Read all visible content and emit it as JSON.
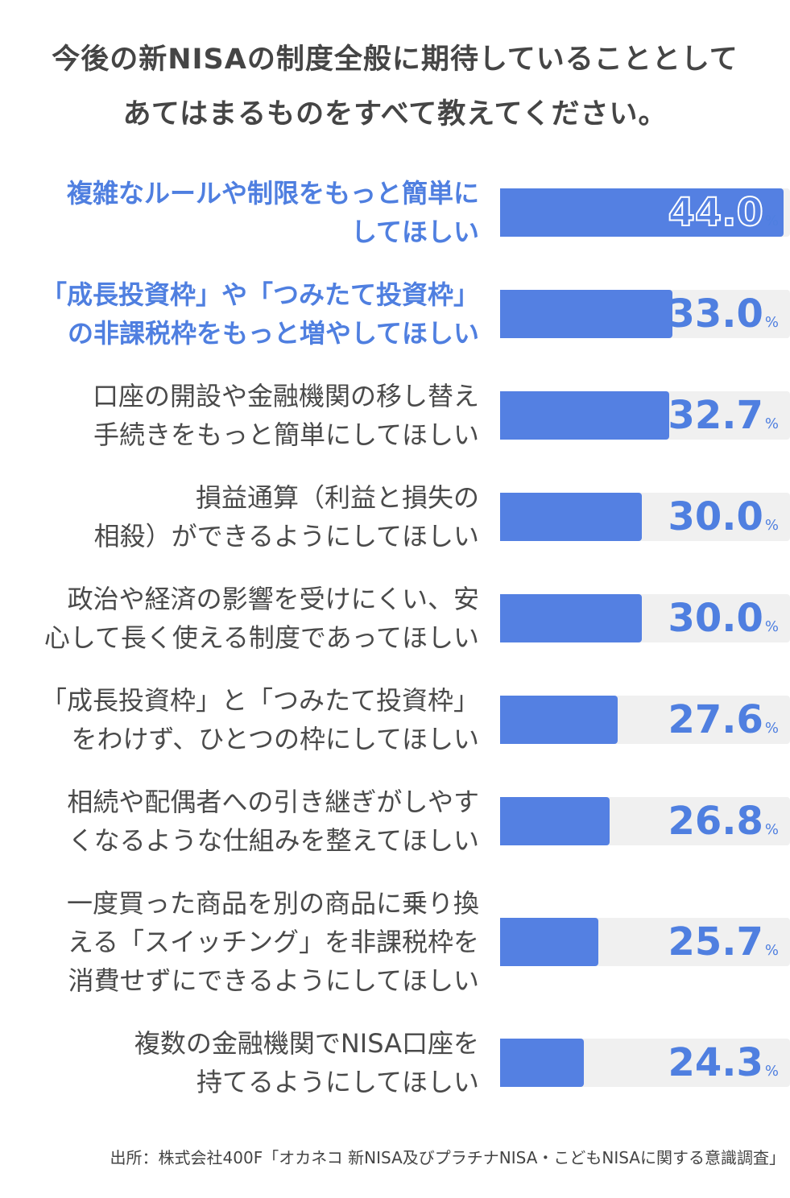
{
  "chart_data": {
    "type": "bar",
    "orientation": "horizontal",
    "title": "今後の新NISAの制度全般に期待していることとして\nあてはまるものをすべて教えてください。",
    "title_lines": [
      "今後の新NISAの制度全般に期待していることとして",
      "あてはまるものをすべて教えてください。"
    ],
    "categories": [
      [
        "複雑なルールや制限をもっと簡単に",
        "してほしい"
      ],
      [
        "「成長投資枠」や「つみたて投資枠」",
        "の非課税枠をもっと増やしてほしい"
      ],
      [
        "口座の開設や金融機関の移し替え",
        "手続きをもっと簡単にしてほしい"
      ],
      [
        "損益通算（利益と損失の",
        "相殺）ができるようにしてほしい"
      ],
      [
        "政治や経済の影響を受けにくい、安",
        "心して長く使える制度であってほしい"
      ],
      [
        "「成長投資枠」と「つみたて投資枠」",
        "をわけず、ひとつの枠にしてほしい"
      ],
      [
        "相続や配偶者への引き継ぎがしやす",
        "くなるような仕組みを整えてほしい"
      ],
      [
        "一度買った商品を別の商品に乗り換",
        "える「スイッチング」を非課税枠を",
        "消費せずにできるようにしてほしい"
      ],
      [
        "複数の金融機関でNISA口座を",
        "持てるようにしてほしい"
      ]
    ],
    "values": [
      44.0,
      33.0,
      32.7,
      30.0,
      30.0,
      27.6,
      26.8,
      25.7,
      24.3
    ],
    "value_labels": [
      "44.0",
      "33.0",
      "32.7",
      "30.0",
      "30.0",
      "27.6",
      "26.8",
      "25.7",
      "24.3"
    ],
    "unit": "%",
    "highlighted": [
      0,
      1
    ],
    "colors": {
      "bar": "#5480e2",
      "track": "#f0f0f0",
      "highlight_text": "#4f7fe0",
      "text": "#4a4a4a"
    },
    "grid": false
  },
  "source": "出所：株式会社400F「オカネコ 新NISA及びプラチナNISA・こどもNISAに関する意識調査」"
}
